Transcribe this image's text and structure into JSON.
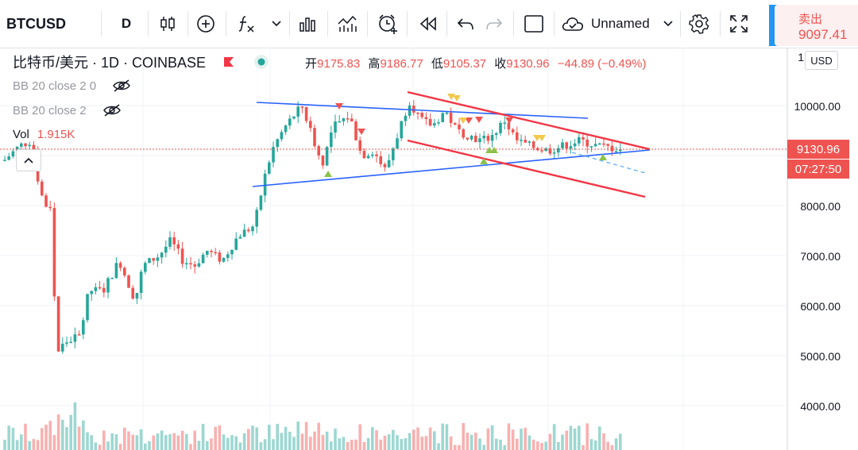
{
  "toolbar": {
    "symbol": "BTCUSD",
    "interval": "D",
    "layout_name": "Unnamed",
    "icons": [
      "candles-icon",
      "add-compare-icon",
      "indicators-icon",
      "chevron-down-icon",
      "bar-chart-templates-icon",
      "financials-icon",
      "alert-clock-icon",
      "replay-icon",
      "undo-icon",
      "redo-icon",
      "fullscreen-square-icon",
      "cloud-icon",
      "settings-gear-icon",
      "expand-icon"
    ]
  },
  "sell": {
    "label": "卖出",
    "price": "9097.41"
  },
  "legend": {
    "symbol_title": "比特币/美元 · 1D · COINBASE",
    "open_label": "开",
    "open": "9175.83",
    "high_label": "高",
    "high": "9186.77",
    "low_label": "低",
    "low": "9105.37",
    "close_label": "收",
    "close": "9130.96",
    "change": "−44.89 (−0.49%)",
    "indicator1": "BB 20 close 2 0",
    "indicator2": "BB 20 close 2",
    "volume_label": "Vol",
    "volume_value": "1.915K"
  },
  "price_axis": {
    "currency": "USD",
    "top_partial": "1",
    "labels": [
      "10000.00",
      "9000.00",
      "8000.00",
      "7000.00",
      "6000.00",
      "5000.00",
      "4000.00"
    ],
    "current_price": "9130.96",
    "countdown": "07:27:50"
  },
  "colors": {
    "up": "#26a69a",
    "down": "#ef5350",
    "trend_blue": "#2962ff",
    "trend_red": "#f23645",
    "grid": "#f0f3fa"
  }
}
